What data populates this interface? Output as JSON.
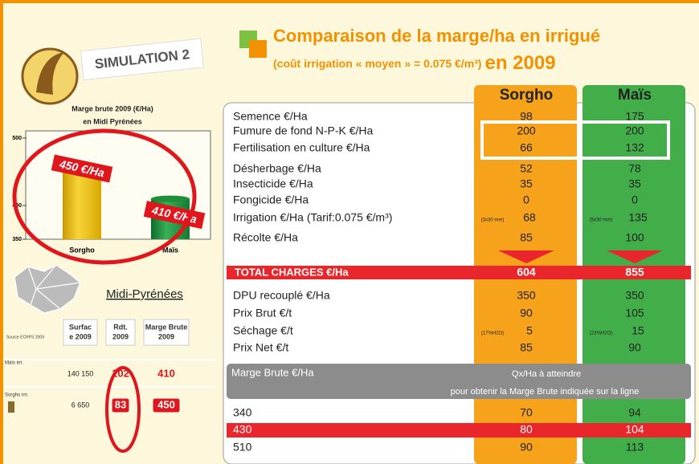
{
  "header": {
    "badge": "SIMULATION 2",
    "title": "Comparaison de la marge/ha en irrigué",
    "subtitle": "(coût irrigation « moyen » = 0.075 €/m³)",
    "year": "en 2009"
  },
  "chart_data": {
    "type": "bar",
    "title": "Marge brute  2009 (€/Ha)",
    "subtitle": "en Midi Pyrénées",
    "categories": [
      "Sorgho",
      "Maïs"
    ],
    "values": [
      450,
      410
    ],
    "value_labels": [
      "450 €/Ha",
      "410 €/Ha"
    ],
    "colors": [
      "#f2c200",
      "#1f8f3c"
    ],
    "ylim": [
      350,
      500
    ],
    "yticks": [
      350,
      400,
      500
    ]
  },
  "region": {
    "title": "Midi-Pyrénées",
    "source": "Source ECRPS 2009",
    "columns": [
      [
        "Surfac",
        "e 2009"
      ],
      [
        "Rdt.",
        "2009"
      ],
      [
        "Marge Brute",
        "2009"
      ]
    ],
    "rows": [
      {
        "label": "Maïs irri.",
        "values": [
          "140 150",
          102,
          410
        ]
      },
      {
        "label": "Sorgho irri.",
        "values": [
          "6 650",
          83,
          450
        ]
      }
    ]
  },
  "table": {
    "columns": [
      "Sorgho",
      "Maïs"
    ],
    "charges": [
      {
        "label": "Semence €/Ha",
        "values": [
          98,
          175
        ]
      },
      {
        "label": "Fumure de fond N-P-K €/Ha",
        "values": [
          200,
          200
        ]
      },
      {
        "label": "Fertilisation en culture €/Ha",
        "values": [
          66,
          132
        ]
      },
      {
        "label": "Désherbage €/Ha",
        "values": [
          52,
          78
        ]
      },
      {
        "label": "Insecticide €/Ha",
        "values": [
          35,
          35
        ]
      },
      {
        "label": "Fongicide €/Ha",
        "values": [
          0,
          0
        ]
      },
      {
        "label": "Irrigation €/Ha (Tarif:0.075 €/m³)",
        "values": [
          68,
          135
        ],
        "notes": [
          "(3x30 mm)",
          "(5x30 mm)"
        ]
      },
      {
        "label": "Récolte €/Ha",
        "values": [
          85,
          100
        ]
      }
    ],
    "total": {
      "label": "TOTAL CHARGES €/Ha",
      "values": [
        604,
        855
      ]
    },
    "prices": [
      {
        "label": "DPU recouplé €/Ha",
        "values": [
          350,
          350
        ]
      },
      {
        "label": "Prix Brut €/t",
        "values": [
          90,
          105
        ]
      },
      {
        "label": "Séchage €/t",
        "values": [
          5,
          15
        ],
        "notes": [
          "(17%H2O)",
          "(23%H2O)"
        ]
      },
      {
        "label": "Prix Net €/t",
        "values": [
          85,
          90
        ]
      }
    ],
    "marge": {
      "label": "Marge Brute €/Ha",
      "header": "Qx/Ha à atteindre",
      "subheader": "pour obtenir la Marge Brute indiquée sur la ligne",
      "rows": [
        {
          "marge": 340,
          "values": [
            70,
            94
          ]
        },
        {
          "marge": 430,
          "values": [
            80,
            104
          ]
        },
        {
          "marge": 510,
          "values": [
            90,
            113
          ]
        }
      ]
    }
  }
}
